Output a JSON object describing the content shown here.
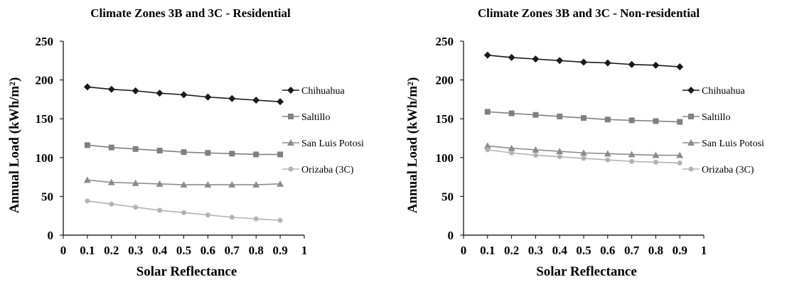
{
  "chart_data": [
    {
      "type": "line",
      "title": "Climate Zones 3B and 3C - Residential",
      "xlabel": "Solar Reflectance",
      "ylabel": "Annual Load (kWh/m²)",
      "xlim": [
        0,
        1
      ],
      "ylim": [
        0,
        250
      ],
      "x_ticks": [
        "0",
        "0.1",
        "0.2",
        "0.3",
        "0.4",
        "0.5",
        "0.6",
        "0.7",
        "0.8",
        "0.9",
        "1"
      ],
      "y_ticks": [
        "0",
        "50",
        "100",
        "150",
        "200",
        "250"
      ],
      "grid": false,
      "legend": "right",
      "x": [
        0.1,
        0.2,
        0.3,
        0.4,
        0.5,
        0.6,
        0.7,
        0.8,
        0.9
      ],
      "series": [
        {
          "name": "Chihuahua",
          "marker": "diamond",
          "color": "#1a1a1a",
          "values": [
            191,
            188,
            186,
            183,
            181,
            178,
            176,
            174,
            172
          ]
        },
        {
          "name": "Saltillo",
          "marker": "square",
          "color": "#808080",
          "values": [
            116,
            113,
            111,
            109,
            107,
            106,
            105,
            104,
            104
          ]
        },
        {
          "name": "San Luis Potosi",
          "marker": "triangle",
          "color": "#8c8c8c",
          "values": [
            71,
            68,
            67,
            66,
            65,
            65,
            65,
            65,
            66
          ]
        },
        {
          "name": "Orizaba (3C)",
          "marker": "circle",
          "color": "#b3b3b3",
          "values": [
            44,
            40,
            36,
            32,
            29,
            26,
            23,
            21,
            19
          ]
        }
      ]
    },
    {
      "type": "line",
      "title": "Climate Zones 3B and 3C - Non-residential",
      "xlabel": "Solar Reflectance",
      "ylabel": "Annual Load (kWh/m²)",
      "xlim": [
        0,
        1
      ],
      "ylim": [
        0,
        250
      ],
      "x_ticks": [
        "0",
        "0.1",
        "0.2",
        "0.3",
        "0.4",
        "0.5",
        "0.6",
        "0.7",
        "0.8",
        "0.9",
        "1"
      ],
      "y_ticks": [
        "0",
        "50",
        "100",
        "150",
        "200",
        "250"
      ],
      "grid": false,
      "legend": "right",
      "x": [
        0.1,
        0.2,
        0.3,
        0.4,
        0.5,
        0.6,
        0.7,
        0.8,
        0.9
      ],
      "series": [
        {
          "name": "Chihuahua",
          "marker": "diamond",
          "color": "#1a1a1a",
          "values": [
            232,
            229,
            227,
            225,
            223,
            222,
            220,
            219,
            217
          ]
        },
        {
          "name": "Saltillo",
          "marker": "square",
          "color": "#808080",
          "values": [
            159,
            157,
            155,
            153,
            151,
            149,
            148,
            147,
            146
          ]
        },
        {
          "name": "San Luis Potosi",
          "marker": "triangle",
          "color": "#8c8c8c",
          "values": [
            115,
            112,
            110,
            108,
            106,
            105,
            104,
            103,
            103
          ]
        },
        {
          "name": "Orizaba (3C)",
          "marker": "circle",
          "color": "#b3b3b3",
          "values": [
            110,
            106,
            103,
            101,
            99,
            97,
            95,
            94,
            93
          ]
        }
      ]
    }
  ]
}
